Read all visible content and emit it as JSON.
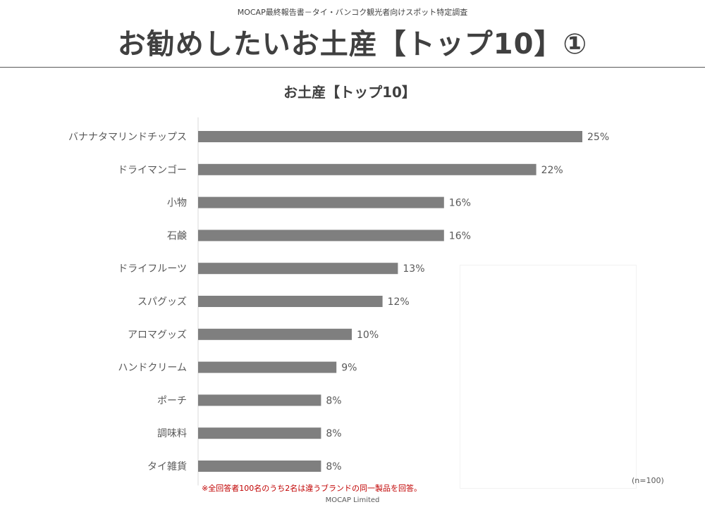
{
  "header": {
    "subtitle": "MOCAP最終報告書－タイ・バンコク観光者向けスポット特定調査",
    "title": "お勧めしたいお土産【トップ10】①"
  },
  "chart_data": {
    "type": "bar",
    "orientation": "horizontal",
    "title": "お土産【トップ10】",
    "categories": [
      "バナナタマリンドチップス",
      "ドライマンゴー",
      "小物",
      "石鹸",
      "ドライフルーツ",
      "スパグッズ",
      "アロマグッズ",
      "ハンドクリーム",
      "ポーチ",
      "調味料",
      "タイ雑貨"
    ],
    "values": [
      25,
      22,
      16,
      16,
      13,
      12,
      10,
      9,
      8,
      8,
      8
    ],
    "value_labels": [
      "25%",
      "22%",
      "16%",
      "16%",
      "13%",
      "12%",
      "10%",
      "9%",
      "8%",
      "8%",
      "8%"
    ],
    "unit": "%",
    "xlim": [
      0,
      25
    ],
    "bar_color": "#7f7f7f",
    "grid": false,
    "legend": "none"
  },
  "note": "※全回答者100名のうち2名は違うブランドの同一製品を回答。",
  "sample_size": "(n=100)",
  "footer": "MOCAP Limited"
}
